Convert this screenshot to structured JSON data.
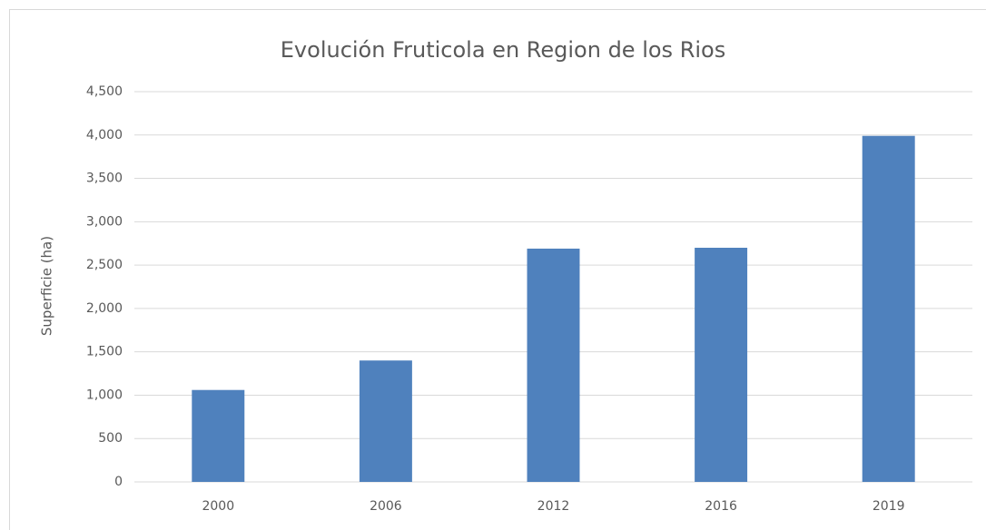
{
  "chart_data": {
    "type": "bar",
    "title": "Evolución Fruticola en Region de los Rios",
    "y_label": "Superficie (ha)",
    "categories": [
      "2000",
      "2006",
      "2012",
      "2016",
      "2019"
    ],
    "values": [
      1060,
      1400,
      2690,
      2700,
      3990
    ],
    "color": "#4f81bd",
    "ylim": [
      0,
      4500
    ],
    "yticks": [
      0,
      500,
      {
        "value": 1000,
        "label": "1,000"
      },
      {
        "value": 1500,
        "label": "1,500"
      },
      {
        "value": 2000,
        "label": "2,000"
      },
      {
        "value": 2500,
        "label": "2,500"
      },
      {
        "value": 3000,
        "label": "3,000"
      },
      {
        "value": 3500,
        "label": "3,500"
      },
      {
        "value": 4000,
        "label": "4,000"
      },
      {
        "value": 4500,
        "label": "4,500"
      }
    ],
    "grid": true
  }
}
